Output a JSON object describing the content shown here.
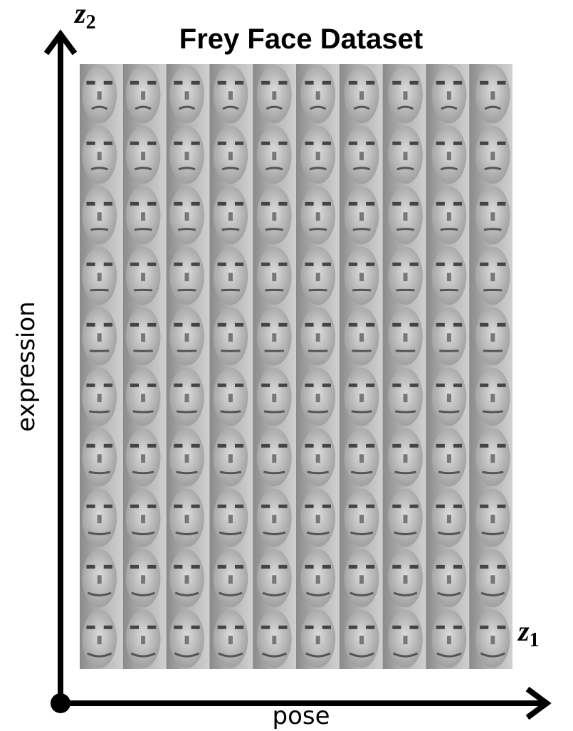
{
  "title": "Frey Face Dataset",
  "axes": {
    "vertical": {
      "symbol": "z",
      "subscript": "2",
      "label": "expression"
    },
    "horizontal": {
      "symbol": "z",
      "subscript": "1",
      "label": "pose"
    }
  }
}
